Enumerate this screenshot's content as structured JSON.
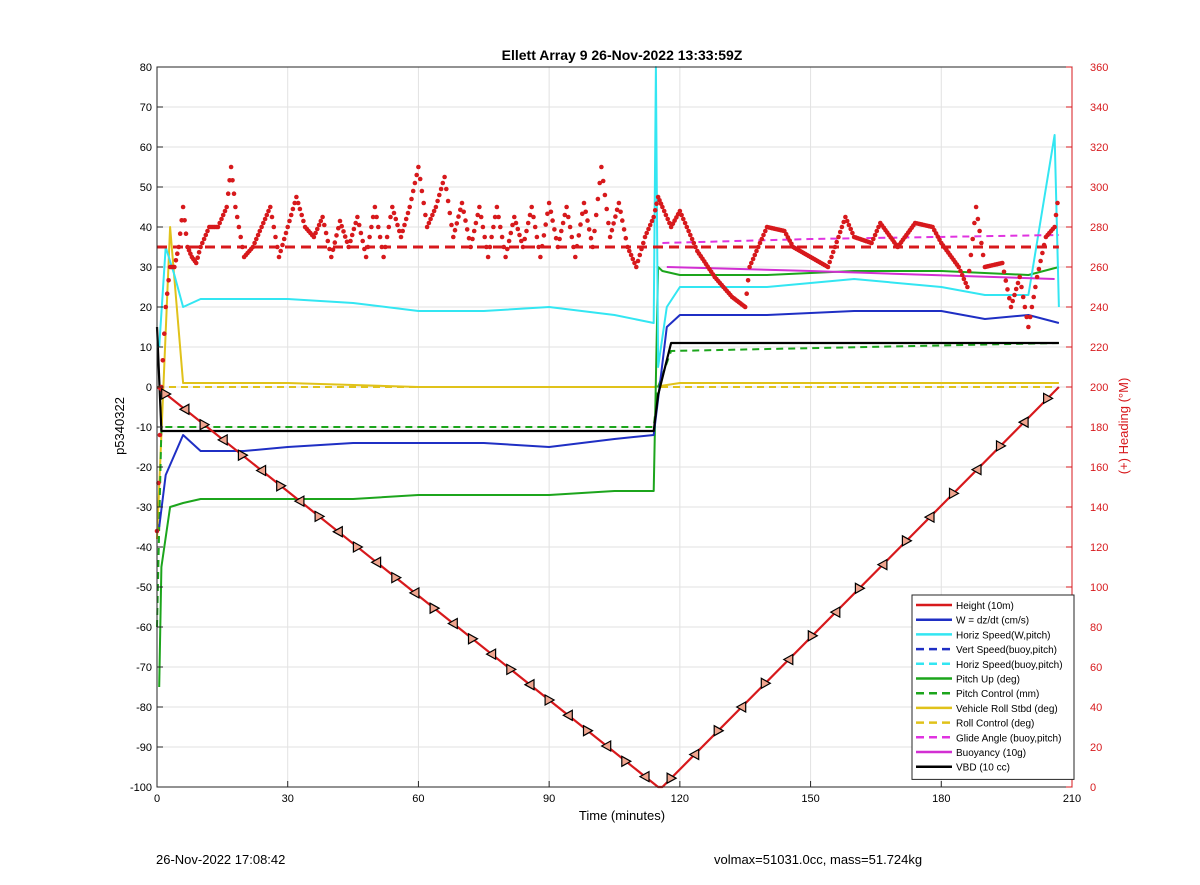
{
  "chart_data": {
    "type": "line",
    "title": "Ellett Array 9 26-Nov-2022 13:33:59Z",
    "xlabel": "Time (minutes)",
    "ylabel": "p5340322",
    "y2label": "(+) Heading (°M)",
    "xlim": [
      0,
      210
    ],
    "ylim": [
      -100,
      80
    ],
    "y2lim": [
      0,
      360
    ],
    "xticks": [
      0,
      30,
      60,
      90,
      120,
      150,
      180,
      210
    ],
    "yticks": [
      -100,
      -90,
      -80,
      -70,
      -60,
      -50,
      -40,
      -30,
      -20,
      -10,
      0,
      10,
      20,
      30,
      40,
      50,
      60,
      70,
      80
    ],
    "y2ticks": [
      0,
      20,
      40,
      60,
      80,
      100,
      120,
      140,
      160,
      180,
      200,
      220,
      240,
      260,
      280,
      300,
      320,
      340,
      360
    ],
    "grid": true,
    "legend_position": "bottom-right",
    "colors": {
      "height": "#d7191c",
      "w": "#1f2fc4",
      "horiz": "#33e6f2",
      "pitch": "#1ca51c",
      "roll": "#e0c21a",
      "glide": "#e033e0",
      "buoyancy": "#d22fd2",
      "vbd": "#000000",
      "heading": "#d7191c",
      "right_axis": "#d7191c"
    },
    "legend": [
      {
        "label": "Height (10m)",
        "color": "#d7191c",
        "dash": false
      },
      {
        "label": "W = dz/dt (cm/s)",
        "color": "#1f2fc4",
        "dash": false
      },
      {
        "label": "Horiz Speed(W,pitch)",
        "color": "#33e6f2",
        "dash": false
      },
      {
        "label": "Vert Speed(buoy,pitch)",
        "color": "#1f2fc4",
        "dash": true
      },
      {
        "label": "Horiz Speed(buoy,pitch)",
        "color": "#33e6f2",
        "dash": true
      },
      {
        "label": "Pitch Up (deg)",
        "color": "#1ca51c",
        "dash": false
      },
      {
        "label": "Pitch Control (mm)",
        "color": "#1ca51c",
        "dash": true
      },
      {
        "label": "Vehicle Roll Stbd (deg)",
        "color": "#e0c21a",
        "dash": false
      },
      {
        "label": "Roll Control (deg)",
        "color": "#e0c21a",
        "dash": true
      },
      {
        "label": "Glide Angle (buoy,pitch)",
        "color": "#e033e0",
        "dash": true
      },
      {
        "label": "Buoyancy (10g)",
        "color": "#d22fd2",
        "dash": false
      },
      {
        "label": "VBD (10 cc)",
        "color": "#000000",
        "dash": false
      }
    ],
    "series": [
      {
        "name": "Height (10m)",
        "x": [
          0,
          115,
          116,
          207
        ],
        "y": [
          0,
          -100,
          -100,
          0
        ]
      },
      {
        "name": "W = dz/dt (cm/s)",
        "x": [
          0.5,
          2,
          4,
          6,
          10,
          20,
          30,
          45,
          60,
          75,
          90,
          105,
          114,
          115,
          117,
          120,
          140,
          160,
          180,
          190,
          200,
          207
        ],
        "y": [
          -35,
          -22,
          -17,
          -12,
          -16,
          -16,
          -15,
          -14,
          -14,
          -14,
          -15,
          -13,
          -12,
          -3,
          15,
          18,
          18,
          19,
          19,
          17,
          18,
          16
        ]
      },
      {
        "name": "Horiz Speed(W,pitch)",
        "x": [
          0.5,
          2,
          4,
          6,
          10,
          20,
          30,
          45,
          60,
          75,
          90,
          105,
          114,
          114.5,
          115,
          117,
          120,
          140,
          160,
          180,
          190,
          200,
          206,
          207
        ],
        "y": [
          10,
          35,
          28,
          20,
          22,
          22,
          22,
          21,
          19,
          19,
          20,
          18,
          16,
          80,
          5,
          20,
          25,
          25,
          27,
          25,
          23,
          23,
          63,
          20
        ]
      },
      {
        "name": "Pitch Up (deg)",
        "x": [
          0.5,
          1,
          3,
          6,
          10,
          20,
          30,
          45,
          60,
          75,
          90,
          105,
          114,
          115,
          116,
          120,
          140,
          160,
          180,
          200,
          207
        ],
        "y": [
          -75,
          -45,
          -30,
          -29,
          -28,
          -28,
          -28,
          -28,
          -27,
          -27,
          -27,
          -26,
          -26,
          30,
          29,
          28,
          28,
          29,
          29,
          28,
          30
        ]
      },
      {
        "name": "Pitch Control (mm)",
        "x": [
          0,
          1,
          114,
          115,
          118,
          207
        ],
        "y": [
          -60,
          -10,
          -10,
          0,
          9,
          11
        ]
      },
      {
        "name": "Vehicle Roll Stbd (deg)",
        "x": [
          0,
          3,
          6,
          10,
          30,
          60,
          90,
          114,
          120,
          150,
          180,
          207
        ],
        "y": [
          -38,
          40,
          1,
          1,
          1,
          0,
          0,
          0,
          1,
          1,
          1,
          1
        ]
      },
      {
        "name": "Roll Control (deg)",
        "x": [
          0,
          206
        ],
        "y": [
          0,
          0
        ]
      },
      {
        "name": "Glide Angle (buoy,pitch)",
        "x": [
          116,
          150,
          207
        ],
        "y": [
          36,
          37,
          38
        ]
      },
      {
        "name": "Buoyancy (10g)",
        "x": [
          117,
          150,
          206
        ],
        "y": [
          30,
          29,
          27
        ]
      },
      {
        "name": "VBD (10 cc)",
        "x": [
          0,
          1,
          114,
          115,
          118,
          207
        ],
        "y": [
          15,
          -11,
          -11,
          -2,
          11,
          11
        ]
      },
      {
        "name": "Heading",
        "axis": "right",
        "x": [
          0,
          1,
          2,
          3,
          4,
          5,
          6,
          7,
          8,
          9,
          10,
          12,
          14,
          16,
          17,
          18,
          20,
          22,
          24,
          26,
          28,
          30,
          32,
          34,
          36,
          38,
          40,
          42,
          44,
          46,
          48,
          50,
          52,
          54,
          56,
          58,
          60,
          62,
          64,
          66,
          68,
          70,
          72,
          74,
          76,
          78,
          80,
          82,
          84,
          86,
          88,
          90,
          92,
          94,
          96,
          98,
          100,
          102,
          104,
          106,
          108,
          110,
          112,
          114,
          115,
          116,
          118,
          120,
          124,
          128,
          132,
          135,
          136,
          140,
          144,
          146,
          150,
          154,
          158,
          160,
          164,
          166,
          170,
          174,
          178,
          180,
          184,
          186,
          188,
          190,
          194,
          196,
          198,
          200,
          202,
          204,
          206,
          207
        ],
        "y": [
          128,
          200,
          240,
          260,
          260,
          270,
          290,
          270,
          265,
          262,
          270,
          280,
          280,
          290,
          310,
          290,
          265,
          270,
          280,
          290,
          265,
          280,
          295,
          280,
          275,
          285,
          265,
          283,
          270,
          285,
          265,
          290,
          265,
          290,
          275,
          290,
          310,
          280,
          290,
          305,
          275,
          292,
          270,
          290,
          265,
          290,
          265,
          285,
          270,
          290,
          265,
          292,
          270,
          290,
          265,
          292,
          270,
          310,
          275,
          292,
          270,
          260,
          275,
          285,
          295,
          290,
          280,
          288,
          268,
          255,
          245,
          240,
          260,
          280,
          278,
          270,
          265,
          260,
          285,
          275,
          272,
          282,
          270,
          282,
          280,
          272,
          260,
          250,
          290,
          260,
          262,
          240,
          255,
          230,
          255,
          275,
          280,
          298
        ]
      },
      {
        "name": "Heading mean",
        "axis": "right",
        "x": [
          0,
          207
        ],
        "y": [
          270,
          270
        ]
      }
    ],
    "annotations": {
      "date_stamp": "26-Nov-2022 17:08:42",
      "summary": "volmax=51031.0cc, mass=51.724kg"
    }
  }
}
